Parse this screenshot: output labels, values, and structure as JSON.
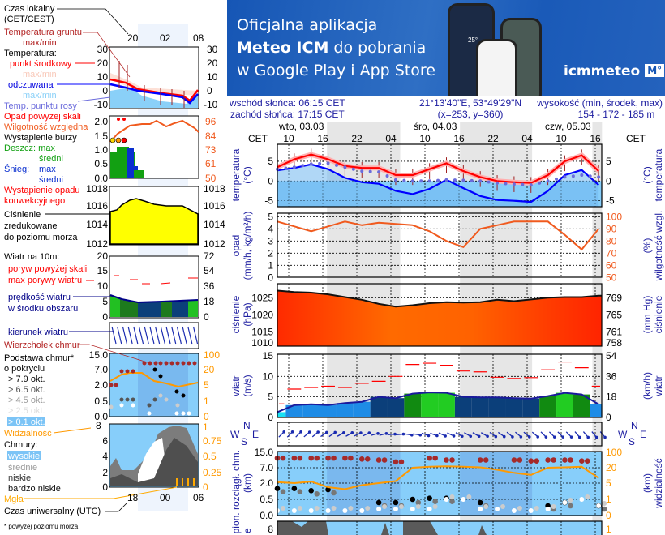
{
  "banner": {
    "line1": "Oficjalna aplikacja",
    "line2_bold": "Meteo ICM",
    "line2_rest": " do pobrania",
    "line3": "w Google Play i App Store",
    "logo_text": "icmmeteo",
    "logo_badge": "M°",
    "phone_temp": "25°"
  },
  "info": {
    "sunrise": "wschód słońca: 06:15 CET",
    "sunset": "zachód słońca: 17:15 CET",
    "coords": "21°13'40\"E, 53°49'29\"N",
    "grid": "(x=253,  y=360)",
    "elev_label": "wysokość (min, środek, max)",
    "elev_value": "154 - 172 - 185 m"
  },
  "timeline": {
    "tz_left": "CET",
    "tz_right": "CET",
    "days": [
      "wto, 03.03",
      "śro, 04.03",
      "czw, 05.03"
    ],
    "hours": [
      "10",
      "16",
      "22",
      "04",
      "10",
      "16",
      "22",
      "04",
      "10",
      "16"
    ]
  },
  "legend": {
    "local_time": "Czas lokalny",
    "local_time_tz": "(CET/CEST)",
    "top_ticks": [
      "20",
      "02",
      "08"
    ],
    "ground_temp": "Temperatura gruntu",
    "ground_temp_mm": "max/min",
    "temperature": "Temperatura:",
    "mid_point": "punkt środkowy",
    "mid_mm": "max/min",
    "apparent": "odczuwana",
    "apparent_mm": "max/min",
    "dew_point": "Temp. punktu rosy",
    "temp_ticks": [
      "30",
      "20",
      "10",
      "0",
      "-10"
    ],
    "precip_over": "Opad powyżej skali",
    "humidity": "Wilgotność względna",
    "storm": "Wystąpienie burzy",
    "rain": "Deszcz: max",
    "rain_avg": "średni",
    "snow": "Śnieg:",
    "snow_max": "max",
    "snow_avg": "średni",
    "convective": "Wystąpienie opadu",
    "convective2": "konwekcyjnego",
    "precip_ticks": [
      "2.0",
      "1.5",
      "1.0",
      "0.5",
      "0.0"
    ],
    "hum_ticks": [
      "96",
      "84",
      "73",
      "61",
      "50"
    ],
    "pressure": "Ciśnienie",
    "pressure2": "zredukowane",
    "pressure3": "do poziomu morza",
    "pres_ticks": [
      "1018",
      "1016",
      "1014",
      "1012"
    ],
    "wind": "Wiatr na 10m:",
    "gust_over": "poryw powyżej skali",
    "gust_max": "max porywy wiatru",
    "wind_speed": "prędkość wiatru",
    "wind_speed2": "w środku obszaru",
    "wind_ticks": [
      "20",
      "15",
      "10",
      "5",
      "0"
    ],
    "wind_kmh_ticks": [
      "72",
      "54",
      "36",
      "18",
      "0"
    ],
    "wind_dir": "kierunek wiatru",
    "cloud_top": "Wierzchołek chmur",
    "cloud_base": "Podstawa chmur*",
    "cloud_base2": "o pokryciu",
    "okt": [
      "> 7.9 okt.",
      "> 6.5 okt.",
      "> 4.5 okt.",
      "> 2.5 okt.",
      "> 0.1 okt."
    ],
    "base_ticks": [
      "15.0",
      "7.0",
      "2.0",
      "0.5",
      "0.0"
    ],
    "vis_ticks": [
      "100",
      "20",
      "5",
      "1",
      "0"
    ],
    "visibility": "Widzialność",
    "vis_top": "8",
    "clouds": "Chmury:",
    "cloud_levels": [
      "wysokie",
      "średnie",
      "niskie",
      "bardzo niskie"
    ],
    "fog": "Mgła",
    "cloud_ticks": [
      "6",
      "4",
      "2",
      "0"
    ],
    "cloud_frac_ticks": [
      "1",
      "0.75",
      "0.5",
      "0.25",
      "0"
    ],
    "bottom_ticks": [
      "18",
      "00",
      "06"
    ],
    "utc": "Czas uniwersalny (UTC)",
    "footnote": "* powyżej poziomu morza"
  },
  "axes": {
    "temp_left": "temperatura",
    "temp_left_unit": "(°C)",
    "temp_right": "temperatura",
    "temp_right_unit": "(°C)",
    "temp_ticks": [
      "5",
      "0",
      "-5"
    ],
    "precip_left": "opad",
    "precip_left_unit": "(mm/h, kg/m²/h)",
    "precip_ticks": [
      "5",
      "4",
      "3",
      "2",
      "1",
      "0"
    ],
    "hum_right": "wilgotność wzgl.",
    "hum_right_unit": "(%)",
    "hum_ticks": [
      "100",
      "90",
      "80",
      "70",
      "60",
      "50"
    ],
    "pres_left": "ciśnienie",
    "pres_left_unit": "(hPa)",
    "pres_ticks": [
      "1025",
      "1020",
      "1015",
      "1010"
    ],
    "pres_right": "ciśnienie",
    "pres_right_unit": "(mm Hg)",
    "pres_hg_ticks": [
      "769",
      "765",
      "761",
      "758"
    ],
    "wind_left": "wiatr",
    "wind_left_unit": "(m/s)",
    "wind_ticks": [
      "15",
      "10",
      "5",
      "0"
    ],
    "wind_right": "wiatr",
    "wind_right_unit": "(km/h)",
    "wind_kmh_ticks": [
      "54",
      "36",
      "18",
      "0"
    ],
    "compass": [
      "N",
      "W",
      "S",
      "E"
    ],
    "cloud_left": "pion. rozciągł. chm.",
    "cloud_left_unit": "(km)",
    "cloud_left_cut": "e",
    "base_ticks": [
      "15.0",
      "7.0",
      "2.0",
      "0.5",
      "0.0"
    ],
    "vis_right": "widzialność",
    "vis_right_unit": "(km)",
    "vis_ticks": [
      "100",
      "20",
      "5",
      "1",
      "0"
    ],
    "clouds_top_tick": "8",
    "clouds_right_top": "1"
  },
  "colors": {
    "text_navy": "#1c1ca0",
    "temp": "#ff0000",
    "apparent": "#0000ff",
    "dew": "#6b6bdc",
    "humidity": "#f05a1e",
    "visibility": "#ff9900",
    "gust": "#ff0000",
    "sky": "#87cefa",
    "night": "#e6e6e6"
  },
  "chart_data": {
    "type": "line",
    "times": [
      "03.03 08:00",
      "03.03 11:00",
      "03.03 14:00",
      "03.03 17:00",
      "03.03 20:00",
      "03.03 23:00",
      "04.03 02:00",
      "04.03 05:00",
      "04.03 08:00",
      "04.03 11:00",
      "04.03 14:00",
      "04.03 17:00",
      "04.03 20:00",
      "04.03 23:00",
      "05.03 02:00",
      "05.03 05:00",
      "05.03 08:00",
      "05.03 11:00",
      "05.03 14:00",
      "05.03 17:00"
    ],
    "temperature_c": [
      3.5,
      5.5,
      6.7,
      5.5,
      3.8,
      3.3,
      3.3,
      1.5,
      1.5,
      3.0,
      4.5,
      2.5,
      1.0,
      0.0,
      -0.3,
      -0.5,
      1.5,
      5.0,
      6.5,
      2.5
    ],
    "apparent_c": [
      2.7,
      3.3,
      4.2,
      3.0,
      0.8,
      -0.3,
      -0.7,
      -2.5,
      -3.3,
      -2.0,
      0.3,
      -1.8,
      -3.8,
      -4.8,
      -5.0,
      -5.3,
      -2.5,
      1.5,
      2.8,
      -1.0
    ],
    "dew_point_c": [
      3.0,
      3.5,
      4.3,
      4.5,
      3.5,
      2.5,
      2.3,
      0.3,
      0.0,
      0.0,
      0.3,
      0.2,
      0.0,
      -0.5,
      -0.8,
      -1.0,
      0.0,
      1.0,
      1.5,
      1.0
    ],
    "precip_mm_h": [
      0,
      0,
      0,
      0,
      0,
      0,
      0,
      0,
      0,
      0,
      0,
      0,
      0,
      0,
      0,
      0,
      0,
      0,
      0,
      0
    ],
    "humidity_pct": [
      96,
      92,
      88,
      92,
      96,
      93,
      95,
      94,
      93,
      88,
      80,
      75,
      90,
      93,
      96,
      96,
      96,
      85,
      73,
      90
    ],
    "pressure_hpa": [
      1027.1,
      1026.7,
      1026.5,
      1026.0,
      1025.2,
      1024.4,
      1023.2,
      1022.4,
      1022.8,
      1023.4,
      1023.7,
      1023.6,
      1023.7,
      1024.4,
      1024.0,
      1024.5,
      1025.0,
      1025.2,
      1025.2,
      1025.6
    ],
    "wind_ms": [
      1.3,
      3.0,
      3.2,
      3.0,
      3.5,
      3.8,
      5.0,
      4.7,
      5.8,
      6.1,
      6.0,
      5.0,
      4.9,
      4.9,
      4.7,
      4.6,
      5.2,
      6.0,
      5.6,
      3.2
    ],
    "gust_ms": [
      3.3,
      6.9,
      7.3,
      7.6,
      7.3,
      8.3,
      8.8,
      10.0,
      12.9,
      13.2,
      12.7,
      11.3,
      11.1,
      9.8,
      9.5,
      9.7,
      11.6,
      13.5,
      12.1,
      7.6
    ],
    "wind_dir_deg": [
      225,
      225,
      230,
      235,
      240,
      245,
      255,
      265,
      280,
      290,
      295,
      300,
      300,
      305,
      310,
      310,
      315,
      315,
      320,
      320
    ],
    "cloud_top_km": [
      12,
      12,
      12,
      12,
      12,
      11.5,
      11,
      10,
      null,
      12,
      11,
      null,
      11,
      null,
      11,
      10.5,
      11,
      11,
      10.5,
      null
    ],
    "cloud_base_low_km": [
      1.5,
      1.5,
      1.3,
      1.4,
      null,
      null,
      0.4,
      0.4,
      0.5,
      0.6,
      0.6,
      null,
      0.4,
      null,
      null,
      null,
      0.3,
      0.4,
      null,
      0.3
    ],
    "cloud_base_thin_km": [
      0.15,
      0.15,
      0.15,
      0.15,
      0.15,
      0.15,
      0.2,
      0.2,
      0.2,
      0.2,
      0.5,
      0.5,
      0.2,
      0.2,
      0.15,
      0.15,
      0.2,
      0.4,
      0.5,
      0.3
    ],
    "visibility_km": [
      6,
      5,
      6.5,
      4,
      3.5,
      4.5,
      5,
      7,
      20,
      25,
      27,
      25,
      22,
      18,
      15,
      13,
      20,
      22,
      25,
      10
    ],
    "temp_ylim": [
      -6.5,
      9.5
    ],
    "humidity_ylim": [
      50,
      100
    ],
    "precip_ylim": [
      0,
      5
    ],
    "pressure_ylim": [
      1010,
      1029
    ],
    "wind_ylim": [
      0,
      15.5
    ],
    "grid": true
  }
}
